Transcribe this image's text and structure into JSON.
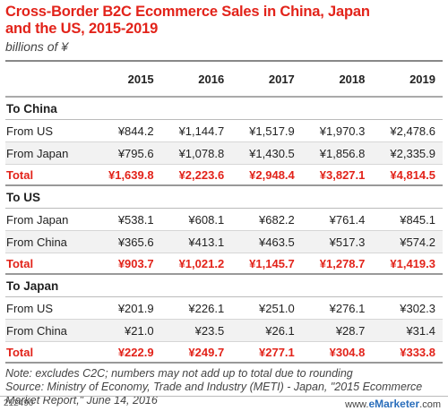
{
  "title": "Cross-Border B2C Ecommerce Sales in China, Japan\nand the US, 2015-2019",
  "subtitle": "billions of ¥",
  "note": "Note: excludes C2C; numbers may not add up to total due to rounding",
  "source": "Source: Ministry of Economy, Trade and Industry (METI) - Japan, \"2015 Ecommerce Market Report,\" June 14, 2016",
  "chart_id": "212490",
  "brand": {
    "prefix": "www.",
    "name": "eMarketer",
    "suffix": ".com"
  },
  "chart_data": {
    "type": "table",
    "title": "Cross-Border B2C Ecommerce Sales in China, Japan and the US, 2015-2019",
    "unit": "billions of ¥",
    "columns": [
      "2015",
      "2016",
      "2017",
      "2018",
      "2019"
    ],
    "sections": [
      {
        "name": "To China",
        "rows": [
          {
            "label": "From US",
            "values": [
              "¥844.2",
              "¥1,144.7",
              "¥1,517.9",
              "¥1,970.3",
              "¥2,478.6"
            ]
          },
          {
            "label": "From Japan",
            "values": [
              "¥795.6",
              "¥1,078.8",
              "¥1,430.5",
              "¥1,856.8",
              "¥2,335.9"
            ]
          }
        ],
        "total": {
          "label": "Total",
          "values": [
            "¥1,639.8",
            "¥2,223.6",
            "¥2,948.4",
            "¥3,827.1",
            "¥4,814.5"
          ]
        }
      },
      {
        "name": "To US",
        "rows": [
          {
            "label": "From Japan",
            "values": [
              "¥538.1",
              "¥608.1",
              "¥682.2",
              "¥761.4",
              "¥845.1"
            ]
          },
          {
            "label": "From China",
            "values": [
              "¥365.6",
              "¥413.1",
              "¥463.5",
              "¥517.3",
              "¥574.2"
            ]
          }
        ],
        "total": {
          "label": "Total",
          "values": [
            "¥903.7",
            "¥1,021.2",
            "¥1,145.7",
            "¥1,278.7",
            "¥1,419.3"
          ]
        }
      },
      {
        "name": "To Japan",
        "rows": [
          {
            "label": "From US",
            "values": [
              "¥201.9",
              "¥226.1",
              "¥251.0",
              "¥276.1",
              "¥302.3"
            ]
          },
          {
            "label": "From China",
            "values": [
              "¥21.0",
              "¥23.5",
              "¥26.1",
              "¥28.7",
              "¥31.4"
            ]
          }
        ],
        "total": {
          "label": "Total",
          "values": [
            "¥222.9",
            "¥249.7",
            "¥277.1",
            "¥304.8",
            "¥333.8"
          ]
        }
      }
    ],
    "colors": {
      "title": "#e2231a",
      "total": "#e2231a",
      "brand": "#2a6ebb"
    }
  }
}
